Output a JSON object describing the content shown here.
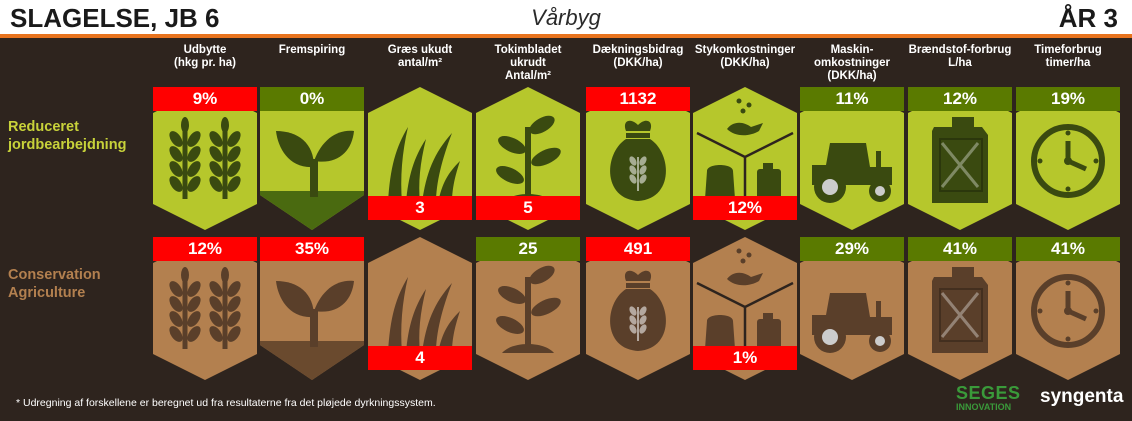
{
  "header": {
    "left": "SLAGELSE, JB 6",
    "center": "Vårbyg",
    "right": "ÅR 3"
  },
  "colors": {
    "red": "#ff0000",
    "green_badge": "#5a7a00",
    "green_fill": "#b6c72c",
    "green_dark": "#4a6a10",
    "brown_fill": "#b3804f",
    "brown_dark": "#6a4a2e",
    "brown_badge": "#5a7a00",
    "icon_dark_green": "#3a4a10",
    "icon_dark_brown": "#5a3f2a",
    "orange": "#e8731e"
  },
  "columns": [
    {
      "title": "Udbytte",
      "sub": "(hkg pr. ha)",
      "icon": "wheat-icon"
    },
    {
      "title": "Fremspiring",
      "sub": "",
      "icon": "sprout-icon"
    },
    {
      "title": "Græs ukudt",
      "sub": "antal/m²",
      "icon": "grass-icon"
    },
    {
      "title": "Tokimbladet ukrudt",
      "sub": "Antal/m²",
      "icon": "weed-icon"
    },
    {
      "title": "Dækningsbidrag",
      "sub": "(DKK/ha)",
      "icon": "money-bag-icon"
    },
    {
      "title": "Stykomkostninger",
      "sub": "(DKK/ha)",
      "icon": "inputs-cube-icon"
    },
    {
      "title": "Maskin-omkostninger",
      "sub": "(DKK/ha)",
      "icon": "tractor-icon"
    },
    {
      "title": "Brændstof-forbrug",
      "sub": "L/ha",
      "icon": "fuel-can-icon"
    },
    {
      "title": "Timeforbrug",
      "sub": "timer/ha",
      "icon": "clock-icon"
    }
  ],
  "rows": [
    {
      "label_line1": "Reduceret",
      "label_line2": "jordbearbejdning",
      "label_color": "#c8d23a",
      "values": [
        {
          "value": "9%",
          "badge": "red",
          "pos": "top"
        },
        {
          "value": "0%",
          "badge": "green",
          "pos": "top"
        },
        {
          "value": "3",
          "badge": "red",
          "pos": "bottom"
        },
        {
          "value": "5",
          "badge": "red",
          "pos": "bottom"
        },
        {
          "value": "1132",
          "badge": "red",
          "pos": "top"
        },
        {
          "value": "12%",
          "badge": "red",
          "pos": "bottom"
        },
        {
          "value": "11%",
          "badge": "green",
          "pos": "top"
        },
        {
          "value": "12%",
          "badge": "green",
          "pos": "top"
        },
        {
          "value": "19%",
          "badge": "green",
          "pos": "top"
        }
      ]
    },
    {
      "label_line1": "Conservation",
      "label_line2": "Agriculture",
      "label_color": "#b3804f",
      "values": [
        {
          "value": "12%",
          "badge": "red",
          "pos": "top"
        },
        {
          "value": "35%",
          "badge": "red",
          "pos": "top"
        },
        {
          "value": "4",
          "badge": "red",
          "pos": "bottom"
        },
        {
          "value": "25",
          "badge": "green",
          "pos": "top"
        },
        {
          "value": "491",
          "badge": "red",
          "pos": "top"
        },
        {
          "value": "1%",
          "badge": "red",
          "pos": "bottom"
        },
        {
          "value": "29%",
          "badge": "green",
          "pos": "top"
        },
        {
          "value": "41%",
          "badge": "green",
          "pos": "top"
        },
        {
          "value": "41%",
          "badge": "green",
          "pos": "top"
        }
      ]
    }
  ],
  "footnote": "* Udregning af forskellene er beregnet ud fra resultaterne fra det pløjede dyrkningssystem.",
  "logos": {
    "seges_main": "SEGES",
    "seges_sub": "INNOVATION",
    "syngenta": "syngenta"
  }
}
